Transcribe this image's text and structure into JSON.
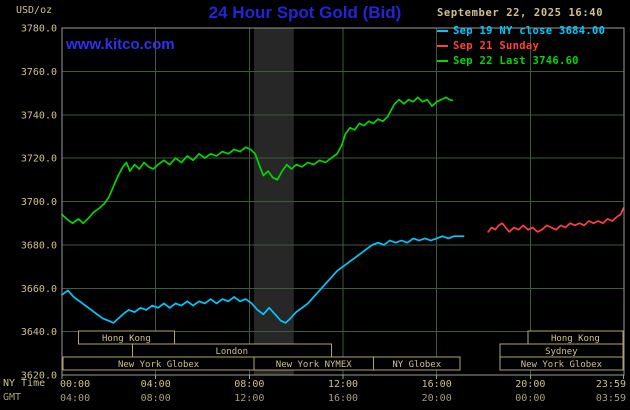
{
  "header": {
    "unit": "USD/oz",
    "title": "24 Hour Spot Gold (Bid)",
    "datetime": "September 22, 2025 16:40",
    "kitco_link": "www.kitco.com"
  },
  "axis_corner": {
    "ny": "NY Time",
    "gmt": "GMT"
  },
  "chart_data": {
    "type": "line",
    "title": "24 Hour Spot Gold (Bid)",
    "ylabel": "USD/oz",
    "ylim": [
      3620,
      3780
    ],
    "xlim_hours": [
      0,
      24
    ],
    "grid": true,
    "legend_position": "top-right",
    "y_ticks": [
      {
        "v": 3780,
        "label": "3780.0"
      },
      {
        "v": 3760,
        "label": "3760.0"
      },
      {
        "v": 3740,
        "label": "3740.0"
      },
      {
        "v": 3720,
        "label": "3720.0"
      },
      {
        "v": 3700,
        "label": "3700.0"
      },
      {
        "v": 3680,
        "label": "3680.0"
      },
      {
        "v": 3660,
        "label": "3660.0"
      },
      {
        "v": 3640,
        "label": "3640.0"
      },
      {
        "v": 3620,
        "label": "3620.0"
      }
    ],
    "x_ticks_ny": [
      {
        "t": 0,
        "label": "00:00"
      },
      {
        "t": 4,
        "label": "04:00"
      },
      {
        "t": 8,
        "label": "08:00"
      },
      {
        "t": 12,
        "label": "12:00"
      },
      {
        "t": 16,
        "label": "16:00"
      },
      {
        "t": 20,
        "label": "20:00"
      },
      {
        "t": 23.98,
        "label": "23:59"
      }
    ],
    "x_ticks_gmt": [
      {
        "t": 0,
        "label": "04:00"
      },
      {
        "t": 4,
        "label": "08:00"
      },
      {
        "t": 8,
        "label": "12:00"
      },
      {
        "t": 12,
        "label": "16:00"
      },
      {
        "t": 16,
        "label": "20:00"
      },
      {
        "t": 20,
        "label": "00:00"
      },
      {
        "t": 23.98,
        "label": "03:59"
      }
    ],
    "series": [
      {
        "id": "sep19",
        "name": "Sep 19 NY close 3684.00",
        "color": "#00c8ff",
        "points": [
          [
            0,
            3657
          ],
          [
            0.25,
            3659
          ],
          [
            0.5,
            3656
          ],
          [
            0.75,
            3654
          ],
          [
            1,
            3652
          ],
          [
            1.25,
            3650
          ],
          [
            1.5,
            3648
          ],
          [
            1.75,
            3646
          ],
          [
            2,
            3645
          ],
          [
            2.2,
            3644
          ],
          [
            2.4,
            3646
          ],
          [
            2.6,
            3648
          ],
          [
            2.85,
            3650
          ],
          [
            3.1,
            3649
          ],
          [
            3.35,
            3651
          ],
          [
            3.6,
            3650
          ],
          [
            3.85,
            3652
          ],
          [
            4.1,
            3651
          ],
          [
            4.35,
            3653
          ],
          [
            4.6,
            3651
          ],
          [
            4.85,
            3653
          ],
          [
            5.1,
            3652
          ],
          [
            5.35,
            3654
          ],
          [
            5.6,
            3652
          ],
          [
            5.85,
            3654
          ],
          [
            6.1,
            3653
          ],
          [
            6.35,
            3655
          ],
          [
            6.6,
            3653
          ],
          [
            6.85,
            3655
          ],
          [
            7.1,
            3654
          ],
          [
            7.35,
            3656
          ],
          [
            7.6,
            3654
          ],
          [
            7.85,
            3655
          ],
          [
            8.1,
            3653
          ],
          [
            8.35,
            3650
          ],
          [
            8.6,
            3648
          ],
          [
            8.85,
            3651
          ],
          [
            9.1,
            3648
          ],
          [
            9.35,
            3645
          ],
          [
            9.55,
            3644
          ],
          [
            9.75,
            3646
          ],
          [
            10,
            3649
          ],
          [
            10.25,
            3651
          ],
          [
            10.5,
            3653
          ],
          [
            10.75,
            3656
          ],
          [
            11,
            3659
          ],
          [
            11.25,
            3662
          ],
          [
            11.5,
            3665
          ],
          [
            11.75,
            3668
          ],
          [
            12,
            3670
          ],
          [
            12.25,
            3672
          ],
          [
            12.5,
            3674
          ],
          [
            12.75,
            3676
          ],
          [
            13,
            3678
          ],
          [
            13.25,
            3680
          ],
          [
            13.5,
            3681
          ],
          [
            13.75,
            3680
          ],
          [
            14,
            3682
          ],
          [
            14.25,
            3681
          ],
          [
            14.5,
            3682
          ],
          [
            14.75,
            3681
          ],
          [
            15,
            3683
          ],
          [
            15.25,
            3682
          ],
          [
            15.5,
            3683
          ],
          [
            15.75,
            3682
          ],
          [
            16,
            3683
          ],
          [
            16.25,
            3684
          ],
          [
            16.5,
            3683
          ],
          [
            16.75,
            3684
          ],
          [
            17,
            3684
          ],
          [
            17.15,
            3684
          ]
        ]
      },
      {
        "id": "sep21",
        "name": "Sep 21 Sunday",
        "color": "#ff4040",
        "points": [
          [
            18.2,
            3686
          ],
          [
            18.35,
            3688
          ],
          [
            18.5,
            3687
          ],
          [
            18.65,
            3689
          ],
          [
            18.8,
            3690
          ],
          [
            18.95,
            3688
          ],
          [
            19.1,
            3686
          ],
          [
            19.3,
            3688
          ],
          [
            19.5,
            3687
          ],
          [
            19.7,
            3689
          ],
          [
            19.9,
            3687
          ],
          [
            20.1,
            3688
          ],
          [
            20.3,
            3686
          ],
          [
            20.5,
            3687
          ],
          [
            20.7,
            3689
          ],
          [
            20.9,
            3688
          ],
          [
            21.1,
            3687
          ],
          [
            21.3,
            3689
          ],
          [
            21.5,
            3688
          ],
          [
            21.7,
            3690
          ],
          [
            21.9,
            3689
          ],
          [
            22.1,
            3690
          ],
          [
            22.3,
            3689
          ],
          [
            22.5,
            3691
          ],
          [
            22.7,
            3690
          ],
          [
            22.9,
            3691
          ],
          [
            23.1,
            3690
          ],
          [
            23.3,
            3692
          ],
          [
            23.5,
            3691
          ],
          [
            23.7,
            3693
          ],
          [
            23.85,
            3694
          ],
          [
            23.98,
            3697
          ]
        ]
      },
      {
        "id": "sep22",
        "name": "Sep 22 Last 3746.60",
        "color": "#00d800",
        "points": [
          [
            0,
            3694
          ],
          [
            0.2,
            3692
          ],
          [
            0.45,
            3690
          ],
          [
            0.7,
            3692
          ],
          [
            0.9,
            3690
          ],
          [
            1.1,
            3692
          ],
          [
            1.35,
            3695
          ],
          [
            1.6,
            3697
          ],
          [
            1.8,
            3699
          ],
          [
            2,
            3702
          ],
          [
            2.2,
            3707
          ],
          [
            2.4,
            3712
          ],
          [
            2.6,
            3716
          ],
          [
            2.75,
            3718
          ],
          [
            2.9,
            3714
          ],
          [
            3.1,
            3717
          ],
          [
            3.3,
            3715
          ],
          [
            3.5,
            3718
          ],
          [
            3.7,
            3716
          ],
          [
            3.9,
            3715
          ],
          [
            4.1,
            3717
          ],
          [
            4.35,
            3719
          ],
          [
            4.6,
            3717
          ],
          [
            4.85,
            3720
          ],
          [
            5.1,
            3718
          ],
          [
            5.35,
            3721
          ],
          [
            5.6,
            3719
          ],
          [
            5.85,
            3722
          ],
          [
            6.1,
            3720
          ],
          [
            6.35,
            3722
          ],
          [
            6.6,
            3721
          ],
          [
            6.85,
            3723
          ],
          [
            7.1,
            3722
          ],
          [
            7.35,
            3724
          ],
          [
            7.6,
            3723
          ],
          [
            7.85,
            3725
          ],
          [
            8.05,
            3724
          ],
          [
            8.25,
            3722
          ],
          [
            8.45,
            3716
          ],
          [
            8.6,
            3712
          ],
          [
            8.8,
            3714
          ],
          [
            9,
            3711
          ],
          [
            9.2,
            3710
          ],
          [
            9.4,
            3714
          ],
          [
            9.6,
            3717
          ],
          [
            9.8,
            3715
          ],
          [
            10,
            3717
          ],
          [
            10.25,
            3716
          ],
          [
            10.5,
            3718
          ],
          [
            10.75,
            3717
          ],
          [
            11,
            3719
          ],
          [
            11.25,
            3718
          ],
          [
            11.5,
            3720
          ],
          [
            11.75,
            3722
          ],
          [
            11.95,
            3726
          ],
          [
            12.1,
            3731
          ],
          [
            12.3,
            3734
          ],
          [
            12.5,
            3733
          ],
          [
            12.7,
            3736
          ],
          [
            12.9,
            3735
          ],
          [
            13.1,
            3737
          ],
          [
            13.3,
            3736
          ],
          [
            13.5,
            3738
          ],
          [
            13.7,
            3737
          ],
          [
            13.9,
            3739
          ],
          [
            14.05,
            3742
          ],
          [
            14.2,
            3745
          ],
          [
            14.4,
            3747
          ],
          [
            14.6,
            3745
          ],
          [
            14.8,
            3747
          ],
          [
            15,
            3746
          ],
          [
            15.2,
            3748
          ],
          [
            15.4,
            3746
          ],
          [
            15.6,
            3747
          ],
          [
            15.8,
            3744
          ],
          [
            16,
            3746
          ],
          [
            16.2,
            3747
          ],
          [
            16.4,
            3748
          ],
          [
            16.55,
            3747
          ],
          [
            16.67,
            3746.6
          ]
        ]
      }
    ],
    "sessions": [
      {
        "row": 0,
        "label": "Hong Kong",
        "start": 0.7,
        "end": 4.8
      },
      {
        "row": 0,
        "label": "Hong Kong",
        "start": 19.9,
        "end": 23.95
      },
      {
        "row": 1,
        "label": "London",
        "start": 3.0,
        "end": 11.5
      },
      {
        "row": 1,
        "label": "Sydney",
        "start": 18.7,
        "end": 23.95
      },
      {
        "row": 2,
        "label": "New York Globex",
        "start": 0.05,
        "end": 8.2
      },
      {
        "row": 2,
        "label": "New York NYMEX",
        "start": 8.2,
        "end": 13.3
      },
      {
        "row": 2,
        "label": "NY Globex",
        "start": 13.3,
        "end": 17.0
      },
      {
        "row": 2,
        "label": "New York Globex",
        "start": 18.7,
        "end": 23.95
      }
    ],
    "band": {
      "start": 8.2,
      "end": 9.9
    },
    "colors": {
      "background": "#000000",
      "grid": "#3e5a3e",
      "border": "#9a9a9a",
      "tan": "#cfc08e",
      "gmt_text": "#a89f78",
      "session": "#b3a568",
      "band": "#272727",
      "title_blue": "#2323d8",
      "link_blue": "#3030f0"
    }
  }
}
